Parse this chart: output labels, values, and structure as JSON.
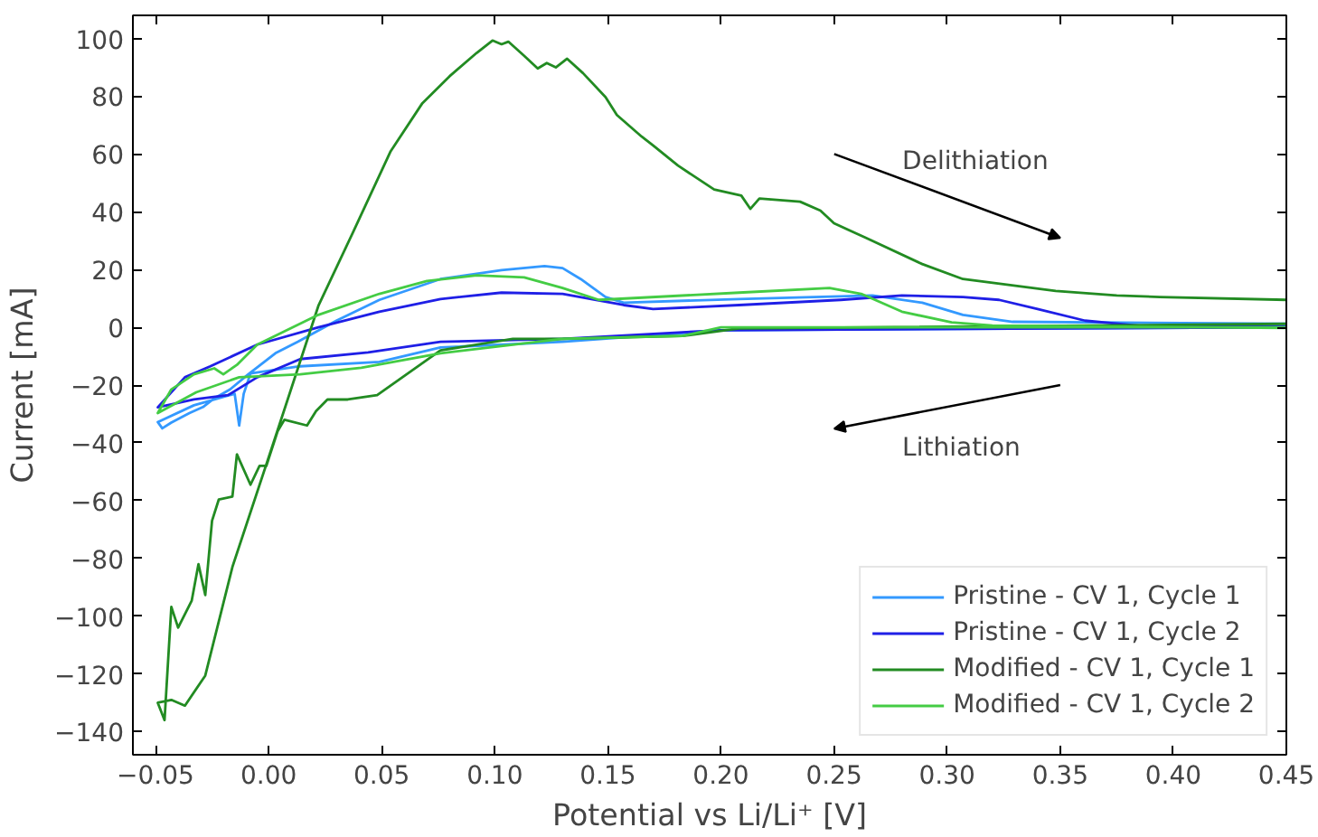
{
  "chart_data": {
    "type": "line",
    "xlabel": "Potential vs Li/Li⁺ [V]",
    "ylabel": "Current [mA]",
    "xlim": [
      -0.06,
      0.45
    ],
    "ylim": [
      -148,
      108
    ],
    "xticks": [
      {
        "value": -0.05,
        "label": "−0.05"
      },
      {
        "value": 0.0,
        "label": "0.00"
      },
      {
        "value": 0.05,
        "label": "0.05"
      },
      {
        "value": 0.1,
        "label": "0.10"
      },
      {
        "value": 0.15,
        "label": "0.15"
      },
      {
        "value": 0.2,
        "label": "0.20"
      },
      {
        "value": 0.25,
        "label": "0.25"
      },
      {
        "value": 0.3,
        "label": "0.30"
      },
      {
        "value": 0.35,
        "label": "0.35"
      },
      {
        "value": 0.4,
        "label": "0.40"
      },
      {
        "value": 0.45,
        "label": "0.45"
      }
    ],
    "yticks": [
      {
        "value": -140,
        "label": "−140"
      },
      {
        "value": -120,
        "label": "−120"
      },
      {
        "value": -100,
        "label": "−100"
      },
      {
        "value": -80,
        "label": "−80"
      },
      {
        "value": -60,
        "label": "−60"
      },
      {
        "value": -40,
        "label": "−40"
      },
      {
        "value": -20,
        "label": "−20"
      },
      0,
      20,
      40,
      60,
      80,
      100
    ],
    "grid": false,
    "legend": "bottom right",
    "marker": "none",
    "line_style": "solid",
    "annotations": [
      "Delithiation",
      "Lithiation"
    ],
    "series": [
      {
        "name": "Pristine - CV 1, Cycle 1",
        "color": "#3399ff",
        "x": [
          0.45,
          0.2,
          0.13,
          0.076,
          0.049,
          0.014,
          -0.008,
          -0.011,
          -0.013,
          -0.015,
          -0.033,
          -0.049,
          -0.047,
          -0.043,
          -0.035,
          -0.029,
          -0.024,
          -0.017,
          -0.009,
          0.003,
          0.013,
          0.03,
          0.049,
          0.076,
          0.103,
          0.122,
          0.13,
          0.138,
          0.149,
          0.157,
          0.208,
          0.267,
          0.289,
          0.307,
          0.329,
          0.45
        ],
        "values": [
          0,
          -1,
          -5,
          -7,
          -12,
          -13.5,
          -16,
          -23,
          -34,
          -23,
          -27,
          -32.8,
          -35,
          -33,
          -29.7,
          -27.6,
          -24.6,
          -21.5,
          -16.3,
          -9,
          -5,
          2.3,
          9.5,
          16.7,
          19.8,
          21.2,
          20.5,
          16.7,
          10.5,
          8.5,
          9.8,
          11,
          8.5,
          4.3,
          1.9,
          1.2
        ]
      },
      {
        "name": "Pristine - CV 1, Cycle 2",
        "color": "#1f1fe6",
        "x": [
          0.45,
          0.2,
          0.13,
          0.076,
          0.044,
          0.014,
          -0.005,
          -0.018,
          -0.033,
          -0.049,
          -0.037,
          -0.026,
          -0.005,
          0.022,
          0.049,
          0.076,
          0.103,
          0.13,
          0.157,
          0.17,
          0.208,
          0.253,
          0.28,
          0.307,
          0.323,
          0.34,
          0.361,
          0.388,
          0.45
        ],
        "values": [
          0,
          -1,
          -4,
          -5,
          -8.7,
          -11,
          -17.3,
          -23.5,
          -25,
          -27.7,
          -17.3,
          -13.6,
          -6,
          0,
          5.4,
          9.8,
          12,
          11.6,
          7.7,
          6.3,
          7.7,
          9.5,
          11,
          10.5,
          9.5,
          6.3,
          2.3,
          0.3,
          0.3
        ]
      },
      {
        "name": "Modified - CV 1, Cycle 1",
        "color": "#228b22",
        "x": [
          0.45,
          0.208,
          0.183,
          0.13,
          0.108,
          0.076,
          0.048,
          0.035,
          0.026,
          0.021,
          0.017,
          0.007,
          0.004,
          -0.001,
          -0.004,
          -0.008,
          -0.014,
          -0.016,
          -0.022,
          -0.025,
          -0.028,
          -0.031,
          -0.034,
          -0.04,
          -0.043,
          -0.046,
          -0.049,
          -0.043,
          -0.037,
          -0.028,
          -0.016,
          0.003,
          0.022,
          0.038,
          0.054,
          0.068,
          0.08,
          0.092,
          0.099,
          0.103,
          0.106,
          0.113,
          0.119,
          0.123,
          0.127,
          0.132,
          0.139,
          0.149,
          0.154,
          0.165,
          0.17,
          0.181,
          0.197,
          0.209,
          0.213,
          0.217,
          0.235,
          0.244,
          0.25,
          0.264,
          0.289,
          0.307,
          0.348,
          0.375,
          0.394,
          0.45
        ],
        "values": [
          1.2,
          -0.4,
          -3,
          -4,
          -4,
          -8,
          -23.5,
          -25,
          -25,
          -29,
          -34,
          -32,
          -36,
          -48,
          -48,
          -54.5,
          -44,
          -58.6,
          -59.6,
          -67,
          -92.7,
          -82,
          -94.7,
          -104,
          -96.8,
          -136,
          -130,
          -129,
          -131,
          -120.6,
          -83,
          -38,
          7.4,
          34,
          61,
          77.6,
          86.9,
          95,
          99.3,
          98,
          98.9,
          94,
          89.6,
          91.5,
          90,
          93,
          88,
          79.7,
          73.5,
          66,
          63,
          56,
          47.7,
          45.6,
          41,
          44.6,
          43.5,
          40.4,
          36,
          31,
          21.9,
          16.7,
          12.6,
          11,
          10.5,
          9.5
        ]
      },
      {
        "name": "Modified - CV 1, Cycle 2",
        "color": "#44cc44",
        "x": [
          0.45,
          0.2,
          0.183,
          0.13,
          0.076,
          0.041,
          0.014,
          -0.013,
          -0.032,
          -0.049,
          -0.043,
          -0.033,
          -0.024,
          -0.02,
          -0.014,
          -0.005,
          0.022,
          0.049,
          0.07,
          0.092,
          0.113,
          0.13,
          0.146,
          0.208,
          0.248,
          0.262,
          0.28,
          0.302,
          0.32,
          0.45
        ],
        "values": [
          0,
          0,
          -3,
          -4,
          -9,
          -14,
          -16.3,
          -17.3,
          -22.5,
          -29.7,
          -21.5,
          -16.3,
          -14.2,
          -16.3,
          -13,
          -6,
          4.3,
          11.6,
          16,
          18,
          17.3,
          13.6,
          9.5,
          12,
          13.6,
          11.6,
          5.4,
          1.7,
          0.6,
          -0.2
        ]
      }
    ]
  }
}
